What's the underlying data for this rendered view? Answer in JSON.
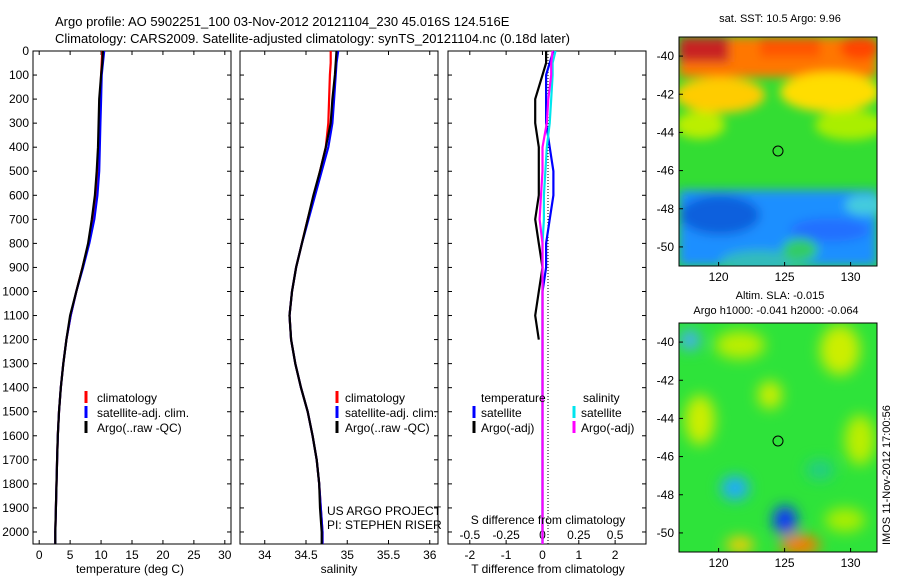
{
  "header": {
    "line1": "Argo profile: AO 5902251_100 03-Nov-2012 20121104_230 45.016S 124.516E",
    "line2": "Climatology: CARS2009. Satellite-adjusted climatology: synTS_20121104.nc (0.18d later)"
  },
  "credit": {
    "line1": "US ARGO PROJECT",
    "line2": "PI: STEPHEN RISER"
  },
  "timestamp": "IMOS 11-Nov-2012 17:00:56",
  "colors": {
    "red": "#ff0000",
    "blue": "#0000ff",
    "black": "#000000",
    "cyan": "#00e5ee",
    "magenta": "#ff00ff"
  },
  "depth_axis": {
    "range": [
      0,
      2050
    ],
    "ticks": [
      "0",
      "100",
      "200",
      "300",
      "400",
      "500",
      "600",
      "700",
      "800",
      "900",
      "1000",
      "1100",
      "1200",
      "1300",
      "1400",
      "1500",
      "1600",
      "1700",
      "1800",
      "1900",
      "2000"
    ]
  },
  "chart_data": [
    {
      "id": "temperature",
      "type": "line",
      "xlabel": "temperature (deg C)",
      "ylabel": "depth",
      "xlim": [
        -1,
        31
      ],
      "ylim": [
        2050,
        0
      ],
      "xticks": [
        "0",
        "5",
        "10",
        "15",
        "20",
        "25",
        "30"
      ],
      "legend": [
        "climatology",
        "satellite-adj. clim.",
        "Argo(..raw -QC)"
      ],
      "depth": [
        0,
        50,
        100,
        200,
        300,
        400,
        500,
        600,
        700,
        800,
        900,
        1000,
        1100,
        1200,
        1300,
        1400,
        1500,
        1600,
        1700,
        1800,
        1900,
        2000,
        2050
      ],
      "series": [
        {
          "name": "climatology",
          "color": "red",
          "values": [
            10.2,
            10.1,
            10.0,
            9.9,
            9.8,
            9.6,
            9.4,
            9.1,
            8.7,
            8.0,
            7.0,
            6.0,
            5.1,
            4.4,
            3.9,
            3.5,
            3.2,
            3.0,
            2.9,
            2.8,
            2.7,
            2.6,
            2.6
          ]
        },
        {
          "name": "satellite-adj. clim.",
          "color": "blue",
          "values": [
            10.5,
            10.3,
            10.1,
            10.0,
            9.9,
            9.8,
            9.7,
            9.4,
            8.9,
            8.1,
            7.1,
            6.0,
            5.1,
            4.4,
            3.9,
            3.5,
            3.2,
            3.0,
            2.9,
            2.8,
            2.7,
            2.6,
            2.6
          ]
        },
        {
          "name": "Argo(..raw -QC)",
          "color": "black",
          "values": [
            10.3,
            10.2,
            10.0,
            9.7,
            9.6,
            9.5,
            9.3,
            9.0,
            8.5,
            7.9,
            7.0,
            6.0,
            5.0,
            4.4,
            3.9,
            3.5,
            3.2,
            3.0,
            2.9,
            2.8,
            2.7,
            2.6,
            2.6
          ]
        }
      ]
    },
    {
      "id": "salinity",
      "type": "line",
      "xlabel": "salinity",
      "ylabel": "depth",
      "xlim": [
        33.7,
        36.1
      ],
      "ylim": [
        2050,
        0
      ],
      "xticks": [
        "34",
        "34.5",
        "35",
        "35.5",
        "36"
      ],
      "legend": [
        "climatology",
        "satellite-adj. clim.",
        "Argo(..raw -QC)"
      ],
      "depth": [
        0,
        50,
        100,
        200,
        300,
        400,
        500,
        600,
        700,
        800,
        900,
        1000,
        1100,
        1200,
        1300,
        1400,
        1500,
        1600,
        1700,
        1800,
        1900,
        2000,
        2050
      ],
      "series": [
        {
          "name": "climatology",
          "color": "red",
          "values": [
            34.8,
            34.8,
            34.79,
            34.78,
            34.77,
            34.74,
            34.67,
            34.6,
            34.52,
            34.45,
            34.38,
            34.33,
            34.3,
            34.32,
            34.37,
            34.44,
            34.52,
            34.58,
            34.63,
            34.66,
            34.68,
            34.7,
            34.7
          ]
        },
        {
          "name": "satellite-adj. clim.",
          "color": "blue",
          "values": [
            34.89,
            34.87,
            34.86,
            34.84,
            34.82,
            34.77,
            34.69,
            34.61,
            34.53,
            34.45,
            34.38,
            34.33,
            34.3,
            34.32,
            34.37,
            34.44,
            34.52,
            34.58,
            34.63,
            34.66,
            34.68,
            34.7,
            34.7
          ]
        },
        {
          "name": "Argo(..raw -QC)",
          "color": "black",
          "values": [
            34.87,
            34.86,
            34.85,
            34.82,
            34.8,
            34.74,
            34.67,
            34.59,
            34.52,
            34.45,
            34.38,
            34.33,
            34.3,
            34.32,
            34.37,
            34.44,
            34.52,
            34.58,
            34.63,
            34.66,
            34.67,
            34.69,
            34.69
          ]
        }
      ]
    },
    {
      "id": "difference",
      "type": "line",
      "xlabel": "T difference from climatology",
      "ylabel": "depth",
      "xlim": [
        -2.6,
        2.85
      ],
      "ylim": [
        2050,
        0
      ],
      "xticks": [
        "-2",
        "-1",
        "0",
        "1",
        "2"
      ],
      "top_xlabel": "S difference from climatology",
      "top_xticks": [
        "-0.5",
        "-0.25",
        "0",
        "0.25",
        "0.5"
      ],
      "top_xlim": [
        -0.65,
        0.7125
      ],
      "legend_titles": [
        "temperature",
        "salinity"
      ],
      "legend": [
        "satellite",
        "Argo(-adj)",
        "satellite",
        "Argo(-adj)"
      ],
      "depth": [
        0,
        50,
        100,
        200,
        300,
        400,
        500,
        600,
        700,
        800,
        900,
        1000,
        1100,
        1200,
        1300,
        1400,
        1500,
        1600,
        1700,
        1800,
        1900,
        2000,
        2050
      ],
      "series": [
        {
          "name": "temperature satellite",
          "color": "blue",
          "values": [
            0.3,
            0.2,
            0.1,
            0.1,
            0.1,
            0.2,
            0.3,
            0.3,
            0.2,
            0.1,
            0.1,
            0.0,
            0.0,
            0.0,
            0.0,
            0.0,
            0.0,
            0.0,
            0.0,
            0.0,
            0.0,
            0.0,
            0.0
          ]
        },
        {
          "name": "temperature Argo(-adj)",
          "color": "black",
          "values": [
            0.1,
            0.1,
            0.0,
            -0.2,
            -0.2,
            -0.1,
            -0.1,
            -0.1,
            -0.2,
            -0.1,
            0.0,
            -0.1,
            -0.2,
            -0.1,
            null,
            null,
            null,
            null,
            null,
            null,
            null,
            null,
            null
          ]
        },
        {
          "name": "salinity satellite",
          "color": "cyan",
          "values": [
            0.09,
            0.07,
            0.07,
            0.06,
            0.05,
            0.03,
            0.02,
            0.01,
            0.01,
            0.0,
            0.0,
            0.0,
            0.0,
            0.0,
            0.0,
            0.0,
            0.0,
            0.0,
            0.0,
            0.0,
            0.0,
            0.0,
            0.0
          ]
        },
        {
          "name": "salinity Argo(-adj)",
          "color": "magenta",
          "values": [
            0.07,
            0.06,
            0.06,
            0.04,
            0.03,
            0.0,
            0.0,
            -0.01,
            -0.02,
            0.0,
            0.0,
            0.0,
            0.0,
            0.0,
            0.0,
            0.0,
            0.0,
            0.0,
            0.0,
            0.0,
            0.0,
            0.0,
            0.0
          ]
        }
      ]
    },
    {
      "id": "sst-map",
      "type": "heatmap",
      "title": "sat. SST: 10.5 Argo: 9.96",
      "x": [
        117,
        132
      ],
      "y": [
        -51,
        -39
      ],
      "xticks": [
        "120",
        "125",
        "130"
      ],
      "yticks": [
        "-40",
        "-42",
        "-44",
        "-46",
        "-48",
        "-50"
      ],
      "marker": {
        "lon": 124.5,
        "lat": -45.0
      }
    },
    {
      "id": "sla-map",
      "type": "heatmap",
      "title": "Altim. SLA: -0.015",
      "subtitle": "Argo h1000: -0.041 h2000: -0.064",
      "x": [
        117,
        132
      ],
      "y": [
        -51,
        -39
      ],
      "xticks": [
        "120",
        "125",
        "130"
      ],
      "yticks": [
        "-40",
        "-42",
        "-44",
        "-46",
        "-48",
        "-50"
      ],
      "marker": {
        "lon": 124.5,
        "lat": -45.0
      }
    }
  ]
}
